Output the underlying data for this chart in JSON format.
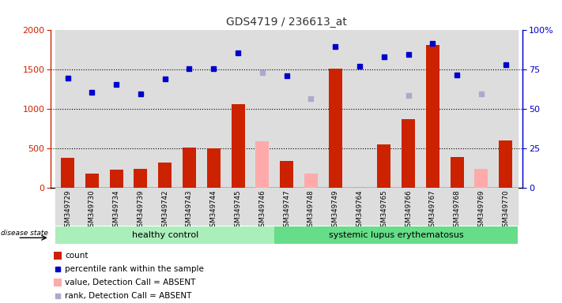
{
  "title": "GDS4719 / 236613_at",
  "samples": [
    "GSM349729",
    "GSM349730",
    "GSM349734",
    "GSM349739",
    "GSM349742",
    "GSM349743",
    "GSM349744",
    "GSM349745",
    "GSM349746",
    "GSM349747",
    "GSM349748",
    "GSM349749",
    "GSM349764",
    "GSM349765",
    "GSM349766",
    "GSM349767",
    "GSM349768",
    "GSM349769",
    "GSM349770"
  ],
  "count_values": [
    380,
    185,
    230,
    240,
    325,
    510,
    505,
    1060,
    null,
    340,
    null,
    1510,
    null,
    550,
    870,
    1810,
    390,
    null,
    605
  ],
  "count_absent": [
    null,
    null,
    null,
    null,
    null,
    null,
    null,
    null,
    590,
    null,
    180,
    null,
    null,
    null,
    null,
    null,
    null,
    245,
    null
  ],
  "rank_values": [
    1390,
    1210,
    1310,
    1190,
    1380,
    1510,
    1515,
    1710,
    null,
    1420,
    null,
    1790,
    1540,
    1660,
    1690,
    1830,
    1430,
    null,
    1565
  ],
  "rank_absent": [
    null,
    null,
    null,
    null,
    null,
    null,
    null,
    null,
    1460,
    null,
    1130,
    null,
    null,
    null,
    1170,
    null,
    null,
    1190,
    null
  ],
  "group_labels": [
    "healthy control",
    "systemic lupus erythematosus"
  ],
  "healthy_count": 9,
  "disease_state_label": "disease state",
  "ylim_left": [
    0,
    2000
  ],
  "ylim_right": [
    0,
    100
  ],
  "yticks_left": [
    0,
    500,
    1000,
    1500,
    2000
  ],
  "yticks_right": [
    0,
    25,
    50,
    75,
    100
  ],
  "bar_color_red": "#cc2200",
  "bar_color_pink": "#ffaaaa",
  "dot_color_blue": "#0000cc",
  "dot_color_lightblue": "#aaaacc",
  "bg_color": "#dddddd",
  "group_color_healthy": "#aaeebb",
  "group_color_lupus": "#66dd88",
  "title_color": "#333333",
  "left_axis_color": "#cc2200",
  "right_axis_color": "#0000cc"
}
